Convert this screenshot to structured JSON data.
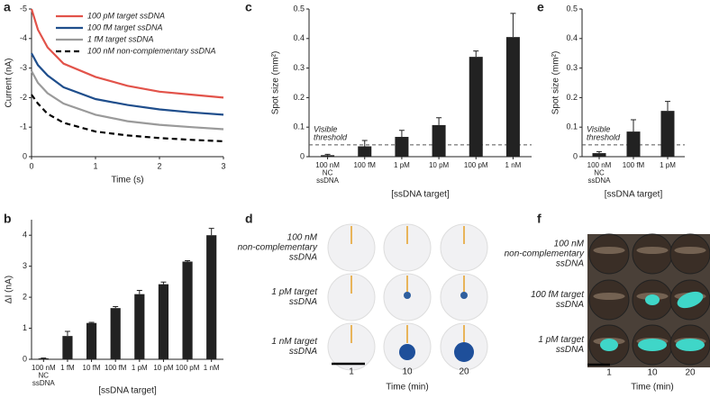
{
  "chart_data": [
    {
      "type": "line",
      "label": "a",
      "ylabel": "Current (nA)",
      "xlabel": "Time (s)",
      "x": [
        0,
        0.1,
        0.25,
        0.5,
        1,
        1.5,
        2,
        2.5,
        3
      ],
      "series": [
        {
          "name": "100 pM target ssDNA",
          "color": "#e2534a",
          "values": [
            -5,
            -4.3,
            -3.7,
            -3.15,
            -2.7,
            -2.4,
            -2.2,
            -2.1,
            -2.0
          ]
        },
        {
          "name": "100 fM target ssDNA",
          "color": "#1f4e8c",
          "values": [
            -3.5,
            -3.1,
            -2.75,
            -2.35,
            -1.95,
            -1.75,
            -1.6,
            -1.5,
            -1.42
          ]
        },
        {
          "name": "1 fM target ssDNA",
          "color": "#9a9a9a",
          "values": [
            -2.9,
            -2.5,
            -2.15,
            -1.8,
            -1.42,
            -1.2,
            -1.08,
            -1.0,
            -0.93
          ]
        },
        {
          "name": "100 nM non-complementary ssDNA",
          "color": "#000000",
          "dashed": true,
          "values": [
            -2.1,
            -1.8,
            -1.45,
            -1.15,
            -0.85,
            -0.72,
            -0.63,
            -0.57,
            -0.52
          ]
        }
      ],
      "xlim": [
        0,
        3
      ],
      "xticks": [
        0,
        1,
        2,
        3
      ],
      "ylim": [
        0,
        -5
      ],
      "yticks": [
        -5,
        -4,
        -3,
        -2,
        -1,
        0
      ]
    },
    {
      "type": "bar",
      "label": "b",
      "ylabel": "ΔI (nA)",
      "xlabel": "[ssDNA target]",
      "color": "#222222",
      "categories": [
        [
          "100 nM",
          "NC",
          "ssDNA"
        ],
        "1 fM",
        "10 fM",
        "100 fM",
        "1 pM",
        "10 pM",
        "100 pM",
        "1 nM"
      ],
      "values": [
        0.03,
        0.75,
        1.17,
        1.65,
        2.1,
        2.42,
        3.15,
        4.0
      ],
      "errors": [
        0.01,
        0.15,
        0.02,
        0.05,
        0.12,
        0.07,
        0.03,
        0.22
      ],
      "ylim": [
        0,
        4.5
      ],
      "yticks": [
        0,
        1,
        2,
        3,
        4
      ]
    },
    {
      "type": "bar",
      "label": "c",
      "ylabel": "Spot size (mm²)",
      "xlabel": "[ssDNA target]",
      "color": "#222222",
      "categories": [
        [
          "100 nM",
          "NC",
          "ssDNA"
        ],
        "100 fM",
        "1 pM",
        "10 pM",
        "100 pM",
        "1 nM"
      ],
      "values": [
        0.005,
        0.035,
        0.067,
        0.107,
        0.338,
        0.405
      ],
      "errors": [
        0.003,
        0.02,
        0.022,
        0.025,
        0.02,
        0.08
      ],
      "threshold": 0.04,
      "threshold_label": [
        "Visible",
        "threshold"
      ],
      "ylim": [
        0,
        0.5
      ],
      "yticks": [
        0,
        0.1,
        0.2,
        0.3,
        0.4,
        0.5
      ]
    },
    {
      "type": "bar",
      "label": "e",
      "ylabel": "Spot size (mm²)",
      "xlabel": "[ssDNA target]",
      "color": "#222222",
      "categories": [
        [
          "100 nM",
          "NC",
          "ssDNA"
        ],
        "100 fM",
        "1 pM"
      ],
      "values": [
        0.012,
        0.085,
        0.155
      ],
      "errors": [
        0.005,
        0.04,
        0.032
      ],
      "threshold": 0.04,
      "threshold_label": [
        "Visible",
        "threshold"
      ],
      "ylim": [
        0,
        0.5
      ],
      "yticks": [
        0,
        0.1,
        0.2,
        0.3,
        0.4,
        0.5
      ]
    }
  ],
  "photo_panels": [
    {
      "label": "d",
      "rows": [
        [
          "100 nM",
          "non-complementary",
          "ssDNA"
        ],
        [
          "1 pM target",
          "ssDNA"
        ],
        [
          "1 nM target",
          "ssDNA"
        ]
      ],
      "columns": [
        "1",
        "10",
        "20"
      ],
      "xlabel": "Time (min)"
    },
    {
      "label": "f",
      "rows": [
        [
          "100 nM",
          "non-complementary",
          "ssDNA"
        ],
        [
          "100 fM target",
          "ssDNA"
        ],
        [
          "1 pM target",
          "ssDNA"
        ]
      ],
      "columns": [
        "1",
        "10",
        "20"
      ],
      "xlabel": "Time (min)"
    }
  ]
}
